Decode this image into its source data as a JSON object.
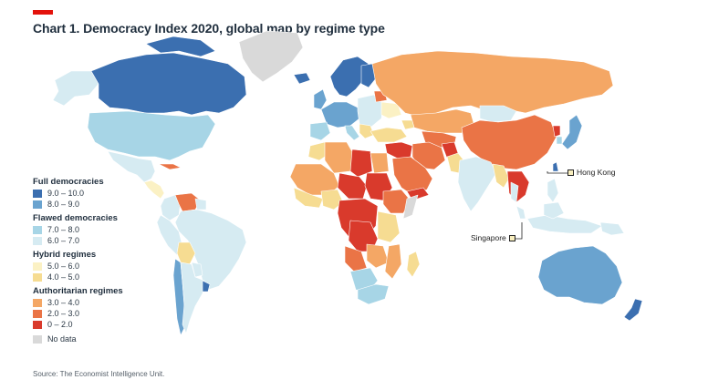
{
  "header": {
    "title": "Chart 1. Democracy Index 2020, global map by regime type",
    "accent_color": "#e3120b"
  },
  "legend": {
    "groups": [
      {
        "title": "Full democracies",
        "items": [
          {
            "label": "9.0 – 10.0",
            "color": "#3b6fb0"
          },
          {
            "label": "8.0 – 9.0",
            "color": "#6aa3cf"
          }
        ]
      },
      {
        "title": "Flawed democracies",
        "items": [
          {
            "label": "7.0 – 8.0",
            "color": "#a7d5e6"
          },
          {
            "label": "6.0 – 7.0",
            "color": "#d6ebf2"
          }
        ]
      },
      {
        "title": "Hybrid regimes",
        "items": [
          {
            "label": "5.0 – 6.0",
            "color": "#fbf1c4"
          },
          {
            "label": "4.0 – 5.0",
            "color": "#f6dc92"
          }
        ]
      },
      {
        "title": "Authoritarian regimes",
        "items": [
          {
            "label": "3.0 – 4.0",
            "color": "#f4a765"
          },
          {
            "label": "2.0 – 3.0",
            "color": "#ea7446"
          },
          {
            "label": "0 – 2.0",
            "color": "#d93a2c"
          }
        ]
      },
      {
        "title": "",
        "items": [
          {
            "label": "No data",
            "color": "#d9d9d9"
          }
        ]
      }
    ]
  },
  "callouts": {
    "hong_kong": "Hong Kong",
    "singapore": "Singapore"
  },
  "source": "Source: The Economist Intelligence Unit."
}
